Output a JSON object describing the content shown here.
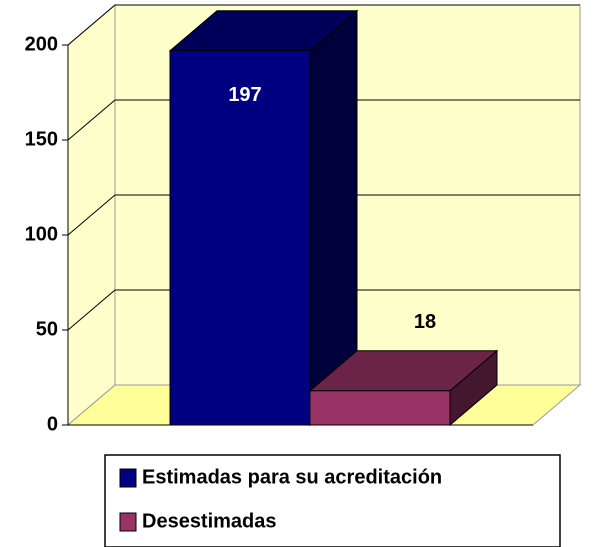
{
  "chart_data": {
    "type": "bar",
    "series": [
      {
        "name": "Estimadas para su acreditación",
        "color": "#000080",
        "values": [
          197
        ]
      },
      {
        "name": "Desestimadas",
        "color": "#993366",
        "values": [
          18
        ]
      }
    ],
    "ylim": [
      0,
      200
    ],
    "yticks": [
      0,
      50,
      100,
      150,
      200
    ],
    "grid": true,
    "legend": "bottom"
  }
}
